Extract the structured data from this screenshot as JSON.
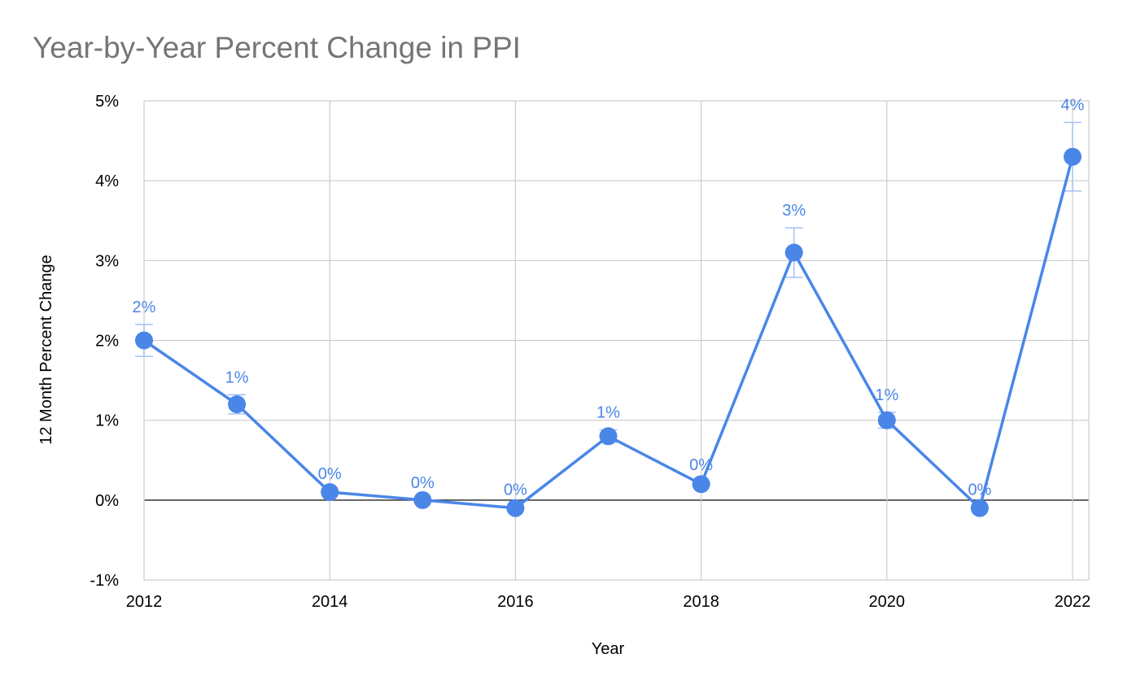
{
  "chart_data": {
    "type": "line",
    "title": "Year-by-Year Percent Change in PPI",
    "xlabel": "Year",
    "ylabel": "12 Month Percent Change",
    "x": [
      2012,
      2013,
      2014,
      2015,
      2016,
      2017,
      2018,
      2019,
      2020,
      2021,
      2022
    ],
    "series": [
      {
        "values": [
          2.0,
          1.2,
          0.1,
          0.0,
          -0.1,
          0.8,
          0.2,
          3.1,
          1.0,
          -0.1,
          4.3
        ],
        "data_labels": [
          "2%",
          "1%",
          "0%",
          "0%",
          "0%",
          "1%",
          "0%",
          "3%",
          "1%",
          "0%",
          "4%"
        ],
        "error": [
          0.2,
          0.12,
          0.01,
          0.0,
          0.01,
          0.08,
          0.02,
          0.31,
          0.1,
          0.01,
          0.43
        ]
      }
    ],
    "xlim": [
      2012,
      2022
    ],
    "ylim": [
      -1,
      5
    ],
    "x_ticks": [
      "2012",
      "2014",
      "2016",
      "2018",
      "2020",
      "2022"
    ],
    "y_ticks": [
      "-1%",
      "0%",
      "1%",
      "2%",
      "3%",
      "4%",
      "5%"
    ],
    "grid": true,
    "legend": "none",
    "colors": {
      "series": "#4a86e8",
      "error_bar": "#a4c2f4",
      "grid": "#cccccc",
      "zero_line": "#333333",
      "title": "#757575"
    }
  }
}
